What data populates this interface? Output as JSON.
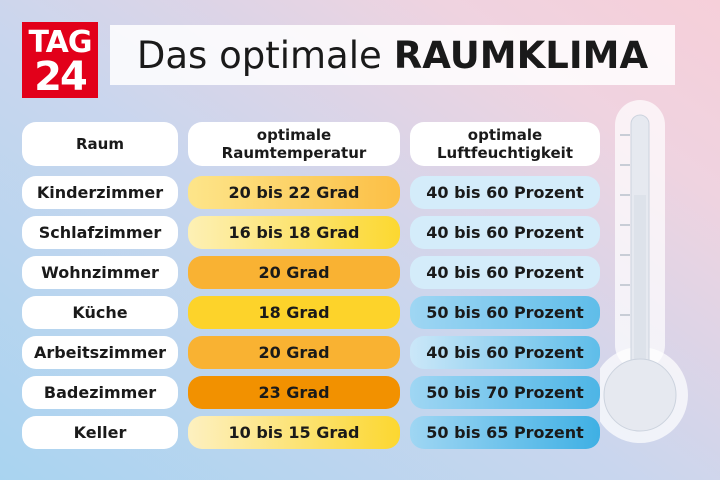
{
  "logo": {
    "line1": "TAG",
    "line2": "24"
  },
  "title": {
    "normal": "Das optimale",
    "bold": "RAUMKLIMA"
  },
  "table": {
    "headers": [
      [
        "Raum"
      ],
      [
        "optimale",
        "Raumtemperatur"
      ],
      [
        "optimale",
        "Luftfeuchtigkeit"
      ]
    ],
    "rows": [
      [
        "Kinderzimmer",
        "20 bis 22 Grad",
        "40 bis 60 Prozent"
      ],
      [
        "Schlafzimmer",
        "16 bis 18 Grad",
        "40 bis 60 Prozent"
      ],
      [
        "Wohnzimmer",
        "20 Grad",
        "40 bis 60 Prozent"
      ],
      [
        "Küche",
        "18 Grad",
        "50 bis 60 Prozent"
      ],
      [
        "Arbeitszimmer",
        "20 Grad",
        "40 bis 60 Prozent"
      ],
      [
        "Badezimmer",
        "23 Grad",
        "50 bis 70 Prozent"
      ],
      [
        "Keller",
        "10 bis 15 Grad",
        "50 bis 65 Prozent"
      ]
    ]
  }
}
